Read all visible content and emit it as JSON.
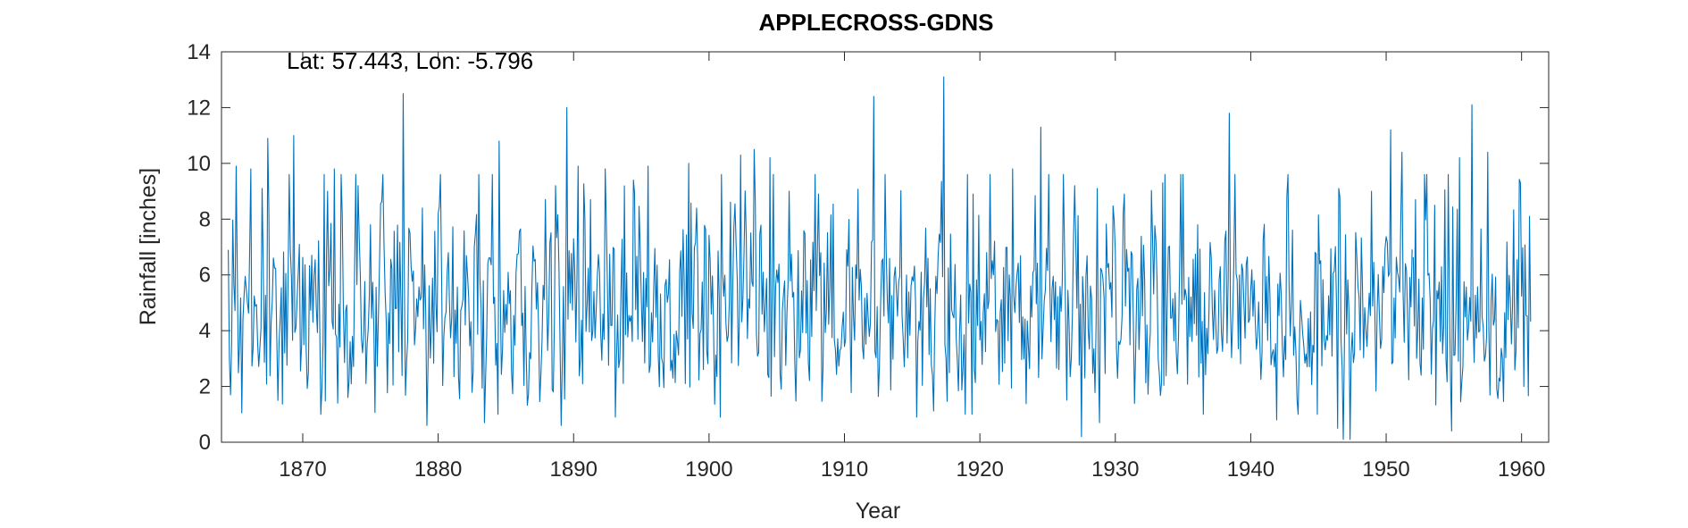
{
  "chart_data": {
    "type": "line",
    "title": "APPLECROSS-GDNS",
    "annotation": "Lat: 57.443, Lon: -5.796",
    "xlabel": "Year",
    "ylabel": "Rainfall [inches]",
    "xlim": [
      1864,
      1962
    ],
    "ylim": [
      0,
      14
    ],
    "xticks": [
      1870,
      1880,
      1890,
      1900,
      1910,
      1920,
      1930,
      1940,
      1950,
      1960
    ],
    "xtick_labels": [
      "1870",
      "1880",
      "1890",
      "1900",
      "1910",
      "1920",
      "1930",
      "1940",
      "1950",
      "1960"
    ],
    "yticks": [
      0,
      2,
      4,
      6,
      8,
      10,
      12,
      14
    ],
    "ytick_labels": [
      "0",
      "2",
      "4",
      "6",
      "8",
      "10",
      "12",
      "14"
    ],
    "grid": false,
    "line_color": "#0072BD",
    "series": [
      {
        "start_year": 1864,
        "start_month": 7,
        "end_year": 1951,
        "end_month": 12,
        "peaks": [
          [
            1864.5,
            6.9
          ],
          [
            1865.1,
            9.9
          ],
          [
            1866.2,
            9.8
          ],
          [
            1867.0,
            9.1
          ],
          [
            1867.4,
            10.9
          ],
          [
            1869.3,
            11.0
          ],
          [
            1871.8,
            9.0
          ],
          [
            1872.3,
            9.8
          ],
          [
            1874.1,
            9.2
          ],
          [
            1877.4,
            12.5
          ],
          [
            1878.8,
            8.4
          ],
          [
            1880.0,
            8.2
          ],
          [
            1884.5,
            10.8
          ],
          [
            1888.7,
            9.2
          ],
          [
            1889.5,
            12.0
          ],
          [
            1890.3,
            9.9
          ],
          [
            1892.3,
            9.8
          ],
          [
            1894.4,
            9.4
          ],
          [
            1895.5,
            9.9
          ],
          [
            1898.5,
            10.0
          ],
          [
            1902.3,
            10.3
          ],
          [
            1903.3,
            10.5
          ],
          [
            1904.5,
            10.2
          ],
          [
            1905.9,
            9.0
          ],
          [
            1908.1,
            8.9
          ],
          [
            1912.2,
            12.4
          ],
          [
            1917.3,
            13.1
          ],
          [
            1919.5,
            8.9
          ],
          [
            1922.4,
            9.8
          ],
          [
            1924.5,
            11.3
          ],
          [
            1927.0,
            9.2
          ],
          [
            1928.7,
            9.1
          ],
          [
            1930.7,
            8.9
          ],
          [
            1933.5,
            9.3
          ],
          [
            1938.4,
            11.8
          ],
          [
            1942.7,
            8.8
          ],
          [
            1946.5,
            9.1
          ],
          [
            1948.9,
            9.0
          ],
          [
            1950.3,
            11.2
          ],
          [
            1951.2,
            10.4
          ]
        ],
        "troughs": [
          [
            1864.7,
            1.7
          ],
          [
            1868.2,
            1.5
          ],
          [
            1872.6,
            1.4
          ],
          [
            1879.2,
            0.6
          ],
          [
            1883.4,
            0.7
          ],
          [
            1889.1,
            0.6
          ],
          [
            1893.1,
            0.9
          ],
          [
            1900.8,
            0.9
          ],
          [
            1915.3,
            0.9
          ],
          [
            1918.9,
            1.0
          ],
          [
            1927.5,
            0.2
          ],
          [
            1928.8,
            0.7
          ],
          [
            1941.9,
            0.8
          ],
          [
            1944.9,
            1.0
          ],
          [
            1946.4,
            0.5
          ],
          [
            1946.8,
            0.1
          ],
          [
            1947.3,
            0.1
          ]
        ]
      },
      {
        "start_year": 1952,
        "start_month": 1,
        "end_year": 1960,
        "end_month": 9,
        "peaks": [
          [
            1952.2,
            8.7
          ],
          [
            1953.6,
            8.5
          ],
          [
            1955.4,
            10.2
          ],
          [
            1956.3,
            12.1
          ],
          [
            1957.5,
            10.4
          ],
          [
            1959.9,
            9.3
          ],
          [
            1960.6,
            8.1
          ]
        ],
        "troughs": [
          [
            1954.8,
            0.4
          ],
          [
            1958.2,
            1.9
          ],
          [
            1960.2,
            2.0
          ]
        ]
      }
    ]
  }
}
